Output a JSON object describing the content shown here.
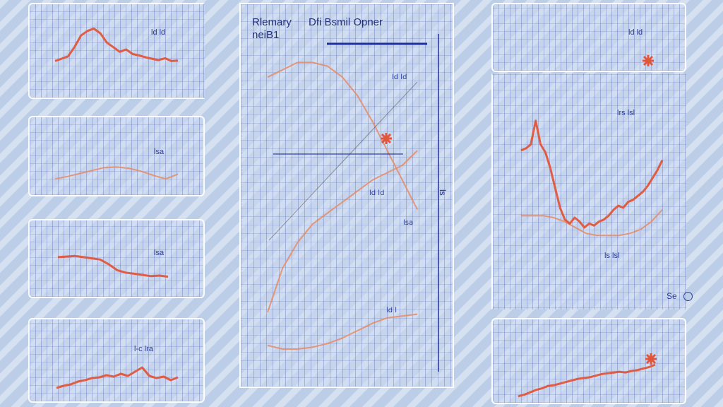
{
  "colors": {
    "line": "#e2553a",
    "faint_line": "#e88a66",
    "ink": "#2c3c9a",
    "accent": "#1f2f9e"
  },
  "main_chart": {
    "title_left": "Rlemary",
    "title_right": "Dfi Bsmil Opner",
    "subtitle": "neiB1",
    "side_mark": "ls"
  },
  "corner_mark": "Se",
  "chart_data": [
    {
      "type": "line",
      "panel": "small-top-left",
      "label": "ld ld",
      "series": [
        {
          "x": [
            0,
            1,
            2,
            3,
            4,
            5,
            6,
            7,
            8,
            9,
            10,
            11,
            12,
            13,
            14,
            15,
            16,
            17,
            18,
            19
          ],
          "values": [
            3,
            3.5,
            4,
            6,
            8.5,
            9.5,
            10,
            9,
            7,
            6,
            5,
            5.5,
            4.5,
            4.2,
            3.8,
            3.5,
            3.2,
            3.6,
            3.0,
            3.1
          ]
        }
      ],
      "ylim": [
        0,
        11
      ]
    },
    {
      "type": "line",
      "panel": "small-mid-left-1",
      "label": "lsa",
      "series": [
        {
          "x": [
            0,
            1,
            2,
            3,
            4,
            5,
            6,
            7,
            8,
            9,
            10
          ],
          "values": [
            2.0,
            2.4,
            2.9,
            3.4,
            3.9,
            4.0,
            3.8,
            3.3,
            2.6,
            2.0,
            2.8
          ]
        }
      ],
      "ylim": [
        0,
        10
      ]
    },
    {
      "type": "line",
      "panel": "small-mid-left-2",
      "label": "lsa",
      "series": [
        {
          "x": [
            0,
            1,
            2,
            3,
            4,
            5,
            6,
            7,
            8,
            9,
            10,
            11,
            12,
            13
          ],
          "values": [
            6.2,
            6.3,
            6.4,
            6.2,
            6.0,
            5.8,
            5.0,
            4.0,
            3.6,
            3.4,
            3.2,
            3.0,
            3.1,
            2.9
          ]
        }
      ],
      "ylim": [
        0,
        10
      ]
    },
    {
      "type": "line",
      "panel": "small-bottom-left",
      "label": "l-c lra",
      "series": [
        {
          "x": [
            0,
            1,
            2,
            3,
            4,
            5,
            6,
            7,
            8,
            9,
            10,
            11,
            12,
            13,
            14,
            15,
            16,
            17
          ],
          "values": [
            1.5,
            1.8,
            2.0,
            2.4,
            2.6,
            2.9,
            3.0,
            3.3,
            3.1,
            3.5,
            3.2,
            3.8,
            4.4,
            3.2,
            2.9,
            3.1,
            2.6,
            3.0
          ]
        }
      ],
      "ylim": [
        0,
        10
      ]
    },
    {
      "type": "line",
      "panel": "main",
      "label": "ld ld",
      "series": [
        {
          "name": "",
          "x": [
            0,
            1,
            2,
            3,
            4,
            5,
            6,
            7,
            8,
            9,
            10
          ],
          "values": [
            8.4,
            8.6,
            8.8,
            8.8,
            8.7,
            8.4,
            7.9,
            7.2,
            6.4,
            5.6,
            4.8
          ]
        },
        {
          "name": "",
          "x": [
            0,
            1,
            2,
            3,
            4,
            5,
            6,
            7,
            8,
            9,
            10
          ],
          "values": [
            2.0,
            3.2,
            3.9,
            4.4,
            4.7,
            5.0,
            5.3,
            5.6,
            5.8,
            6.0,
            6.4
          ]
        },
        {
          "name": "",
          "x": [
            0,
            1,
            2,
            3,
            4,
            5,
            6,
            7,
            8,
            9,
            10
          ],
          "values": [
            1.1,
            1.0,
            1.0,
            1.05,
            1.15,
            1.3,
            1.5,
            1.7,
            1.85,
            1.9,
            1.95
          ]
        }
      ],
      "ylim": [
        0,
        10
      ]
    },
    {
      "type": "line",
      "panel": "small-top-right",
      "label": "ld ld",
      "series": [],
      "ylim": [
        0,
        10
      ]
    },
    {
      "type": "line",
      "panel": "right-tall",
      "label": "lrs lsl",
      "series": [
        {
          "name": "",
          "x": [
            0,
            1,
            2,
            3,
            4,
            5,
            6,
            7,
            8,
            9,
            10,
            11,
            12,
            13,
            14,
            15,
            16,
            17,
            18,
            19,
            20,
            21,
            22,
            23,
            24,
            25,
            26,
            27,
            28,
            29
          ],
          "values": [
            6.9,
            7.0,
            7.2,
            8.4,
            7.2,
            6.8,
            6.0,
            5.0,
            4.0,
            3.4,
            3.2,
            3.5,
            3.3,
            3.0,
            3.2,
            3.1,
            3.3,
            3.4,
            3.6,
            3.9,
            4.1,
            4.0,
            4.3,
            4.4,
            4.6,
            4.8,
            5.1,
            5.5,
            5.9,
            6.4
          ]
        },
        {
          "name": "",
          "x": [
            0,
            1,
            2,
            3,
            4,
            5,
            6,
            7,
            8,
            9,
            10,
            11,
            12,
            13
          ],
          "values": [
            3.6,
            3.6,
            3.6,
            3.5,
            3.3,
            3.0,
            2.7,
            2.6,
            2.6,
            2.6,
            2.7,
            2.9,
            3.3,
            3.9
          ]
        }
      ],
      "ylim": [
        0,
        10
      ]
    },
    {
      "type": "line",
      "panel": "small-bottom-right",
      "label": "",
      "series": [
        {
          "x": [
            0,
            1,
            2,
            3,
            4,
            5,
            6,
            7,
            8,
            9,
            10,
            11,
            12,
            13,
            14,
            15,
            16,
            17,
            18,
            19,
            20,
            21,
            22,
            23
          ],
          "values": [
            1.0,
            1.2,
            1.5,
            1.8,
            2.0,
            2.3,
            2.4,
            2.6,
            2.8,
            3.0,
            3.2,
            3.3,
            3.4,
            3.6,
            3.8,
            3.9,
            4.0,
            4.1,
            4.0,
            4.2,
            4.3,
            4.5,
            4.7,
            5.0
          ]
        }
      ],
      "ylim": [
        0,
        10
      ]
    }
  ],
  "panel_labels": {
    "small_top_left": "ld ld",
    "small_mid_left_1": "lsa",
    "small_mid_left_2": "lsa",
    "small_bottom_left": "l-c lra",
    "small_top_right": "ld ld",
    "right_tall_top": "lrs lsl",
    "right_tall_bottom": "ls lsl",
    "main_upper": "ld ld",
    "main_mid_1": "ld ld",
    "main_mid_2": "lsa",
    "main_low": "ld l"
  }
}
